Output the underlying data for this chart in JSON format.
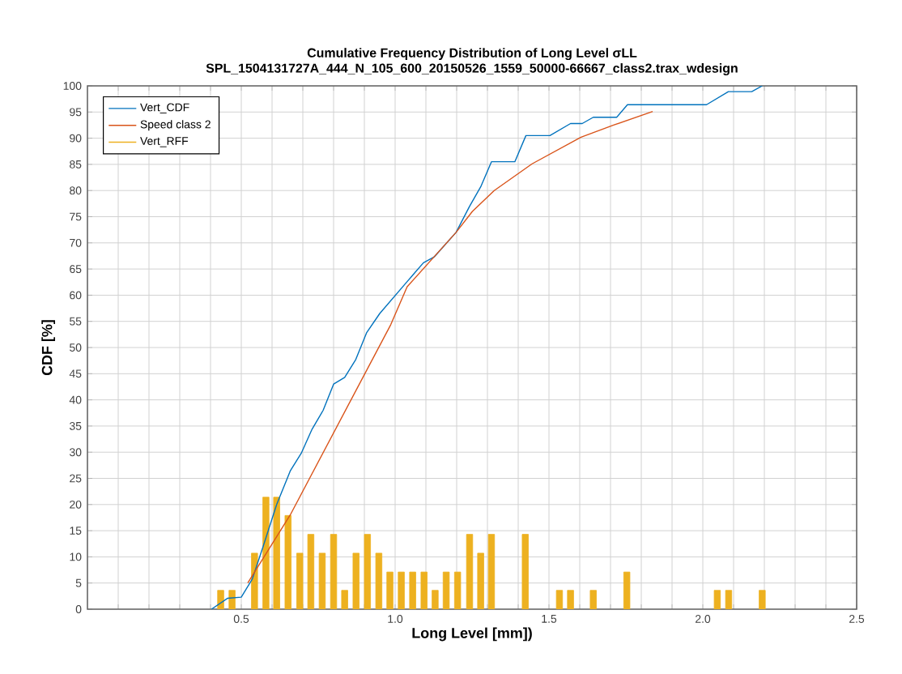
{
  "chart_data": {
    "type": "line",
    "title": "Cumulative Frequency Distribution of Long Level σLL",
    "subtitle": "SPL_1504131727A_444_N_105_600_20150526_1559_50000-66667_class2.trax_wdesign",
    "xlabel": "Long Level [mm])",
    "ylabel": "CDF  [%]",
    "xlim": [
      0,
      2.5
    ],
    "ylim": [
      0,
      100
    ],
    "xticks": [
      {
        "value": 0.1,
        "label": null
      },
      {
        "value": 0.2,
        "label": null
      },
      {
        "value": 0.3,
        "label": null
      },
      {
        "value": 0.4,
        "label": null
      },
      {
        "value": 0.5,
        "label": "0.5"
      },
      {
        "value": 0.6,
        "label": null
      },
      {
        "value": 0.7,
        "label": null
      },
      {
        "value": 0.8,
        "label": null
      },
      {
        "value": 0.9,
        "label": null
      },
      {
        "value": 1.0,
        "label": "1.0"
      },
      {
        "value": 1.1,
        "label": null
      },
      {
        "value": 1.2,
        "label": null
      },
      {
        "value": 1.3,
        "label": null
      },
      {
        "value": 1.4,
        "label": null
      },
      {
        "value": 1.5,
        "label": "1.5"
      },
      {
        "value": 1.6,
        "label": null
      },
      {
        "value": 1.7,
        "label": null
      },
      {
        "value": 1.8,
        "label": null
      },
      {
        "value": 1.9,
        "label": null
      },
      {
        "value": 2.0,
        "label": "2.0"
      },
      {
        "value": 2.1,
        "label": null
      },
      {
        "value": 2.2,
        "label": null
      },
      {
        "value": 2.3,
        "label": null
      },
      {
        "value": 2.4,
        "label": null
      },
      {
        "value": 2.5,
        "label": "2.5"
      }
    ],
    "yticks": [
      0,
      5,
      10,
      15,
      20,
      25,
      30,
      35,
      40,
      45,
      50,
      55,
      60,
      65,
      70,
      75,
      80,
      85,
      90,
      95,
      100
    ],
    "grid": true,
    "legend": "top left",
    "marker": "none",
    "line_style": "solid",
    "series": [
      {
        "name": "Vert_CDF",
        "color": "#0072bd",
        "x": [
          0.403,
          0.456,
          0.5,
          0.536,
          0.571,
          0.615,
          0.659,
          0.695,
          0.73,
          0.766,
          0.8,
          0.836,
          0.872,
          0.907,
          0.95,
          1.039,
          1.092,
          1.127,
          1.198,
          1.242,
          1.278,
          1.313,
          1.389,
          1.425,
          1.503,
          1.57,
          1.608,
          1.644,
          1.72,
          1.755,
          2.012,
          2.083,
          2.159,
          2.193
        ],
        "values": [
          0,
          2.1,
          2.3,
          5.8,
          12,
          20,
          26.4,
          29.8,
          34.4,
          38,
          43,
          44.3,
          47.7,
          52.8,
          56.5,
          62.6,
          66.2,
          67.3,
          72,
          77,
          80.7,
          85.5,
          85.5,
          90.5,
          90.5,
          92.8,
          92.8,
          94,
          94,
          96.4,
          96.4,
          98.9,
          98.9,
          100
        ]
      },
      {
        "name": "Speed class 2",
        "color": "#d95319",
        "x": [
          0.521,
          0.659,
          0.986,
          1.039,
          1.198,
          1.251,
          1.322,
          1.445,
          1.604,
          1.71,
          1.837
        ],
        "values": [
          5,
          18,
          54.4,
          61.6,
          72,
          76,
          80,
          85.1,
          90.2,
          92.5,
          95.1
        ]
      },
      {
        "name": "Vert_RFF",
        "type": "bar",
        "color": "#edb120",
        "x": [
          0.433,
          0.47,
          0.543,
          0.58,
          0.615,
          0.652,
          0.69,
          0.726,
          0.763,
          0.8,
          0.836,
          0.873,
          0.91,
          0.947,
          0.983,
          1.02,
          1.057,
          1.094,
          1.13,
          1.166,
          1.203,
          1.242,
          1.278,
          1.313,
          1.423,
          1.534,
          1.57,
          1.644,
          1.753,
          2.047,
          2.084,
          2.193
        ],
        "values": [
          3.6,
          3.6,
          10.7,
          21.4,
          21.4,
          17.9,
          10.7,
          14.3,
          10.7,
          14.3,
          3.6,
          10.7,
          14.3,
          10.7,
          7.1,
          7.1,
          7.1,
          7.1,
          3.6,
          7.1,
          7.1,
          14.3,
          10.7,
          14.3,
          14.3,
          3.6,
          3.6,
          3.6,
          7.1,
          3.6,
          3.6,
          3.6
        ]
      }
    ]
  }
}
